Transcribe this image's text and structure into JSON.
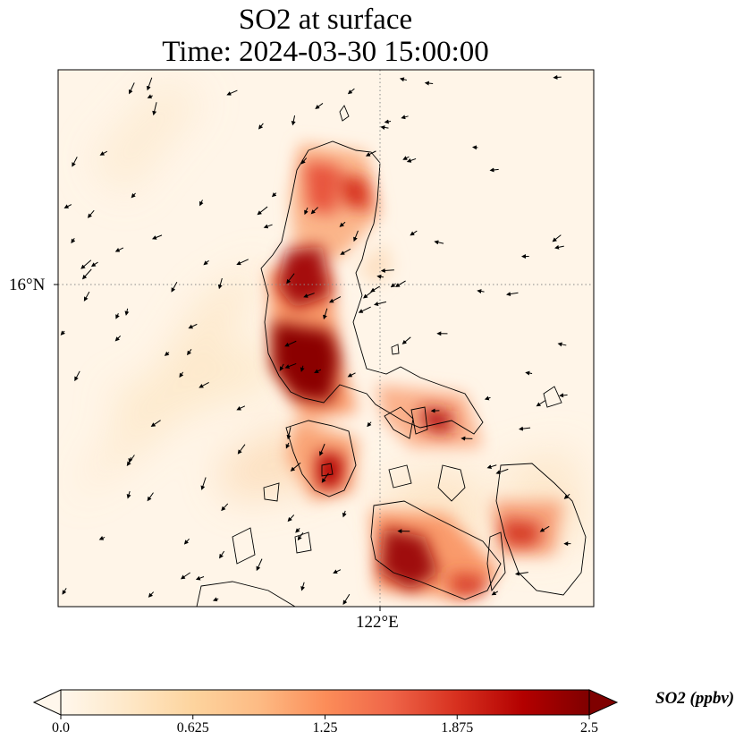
{
  "title": {
    "line1": "SO2 at surface",
    "line2": "Time: 2024-03-30 15:00:00"
  },
  "axes": {
    "lat_gridline_label": "16°N",
    "lon_gridline_label": "122°E"
  },
  "colorbar": {
    "label": "SO2 (ppbv)",
    "min": 0.0,
    "max": 2.5,
    "extend": "both",
    "colormap": "OrRd",
    "ticks": [
      "0.0",
      "0.625",
      "1.25",
      "1.875",
      "2.5"
    ],
    "tick_values": [
      0.0,
      0.625,
      1.25,
      1.875,
      2.5
    ]
  },
  "colors": {
    "background": "#fff5e8",
    "low": "#fde9cc",
    "mid": "#f99c6a",
    "high": "#b50f0a",
    "max": "#7f0000",
    "coastline": "#000000",
    "gridline": "#8a8a8a"
  },
  "map": {
    "features": [
      "coastlines",
      "wind-vectors",
      "lat-lon-gridlines"
    ],
    "gridlines": "dotted"
  }
}
